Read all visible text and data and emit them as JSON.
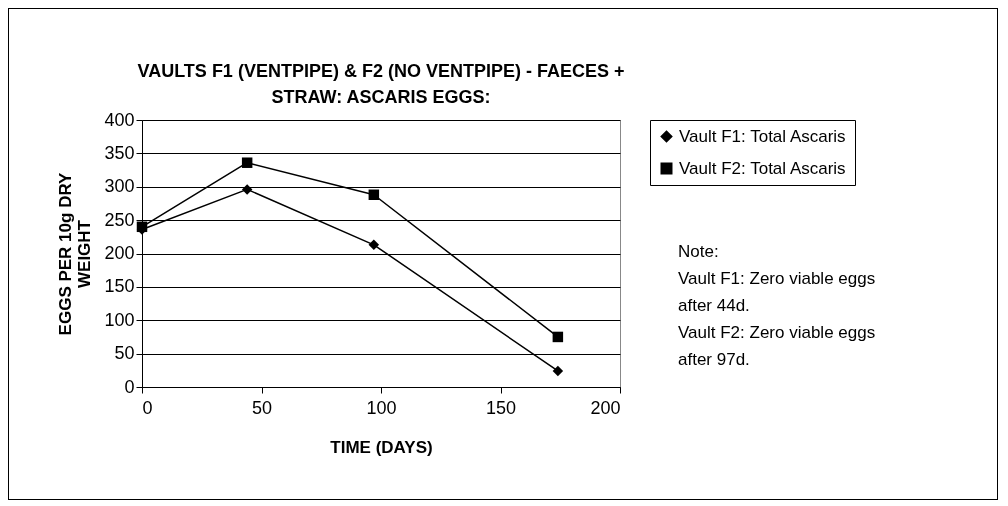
{
  "chart_data": {
    "type": "line",
    "title": "VAULTS F1 (VENTPIPE) & F2 (NO VENTPIPE) - FAECES +\nSTRAW: ASCARIS EGGS:",
    "xlabel": "TIME (DAYS)",
    "ylabel": "EGGS PER 10g DRY\nWEIGHT",
    "x": [
      0,
      44,
      97,
      174
    ],
    "series": [
      {
        "name": "Vault F1: Total Ascaris",
        "color": "#000000",
        "marker": "diamond",
        "values": [
          236,
          296,
          213,
          24
        ]
      },
      {
        "name": "Vault F2: Total Ascaris",
        "color": "#000000",
        "marker": "square",
        "values": [
          240,
          336,
          288,
          75
        ]
      }
    ],
    "xlim": [
      0,
      200
    ],
    "xticks": [
      0,
      50,
      100,
      150,
      200
    ],
    "ylim": [
      0,
      400
    ],
    "yticks": [
      0,
      50,
      100,
      150,
      200,
      250,
      300,
      350,
      400
    ],
    "grid": "y",
    "legend": "right",
    "line_style": "solid",
    "annotations": [
      "Note:",
      "Vault F1: Zero viable eggs after 44d.",
      "Vault F2: Zero viable eggs after 97d."
    ]
  }
}
